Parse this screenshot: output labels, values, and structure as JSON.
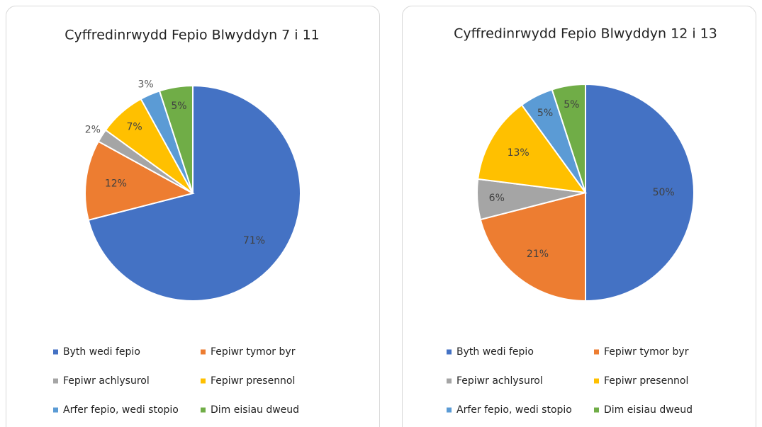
{
  "chart_data": [
    {
      "type": "pie",
      "title": "Cyffredinrwydd Fepio Blwyddyn 7 i 11",
      "categories": [
        "Byth wedi fepio",
        "Fepiwr tymor byr",
        "Fepiwr achlysurol",
        "Fepiwr presennol",
        "Arfer fepio, wedi stopio",
        "Dim eisiau dweud"
      ],
      "values": [
        71,
        12,
        2,
        7,
        3,
        5
      ],
      "value_labels": [
        "71%",
        "12%",
        "2%",
        "7%",
        "3%",
        "5%"
      ],
      "colors": [
        "#4472c4",
        "#ed7d31",
        "#a5a5a5",
        "#ffc000",
        "#5b9bd5",
        "#70ad47"
      ]
    },
    {
      "type": "pie",
      "title": "Cyffredinrwydd Fepio Blwyddyn 12 i 13",
      "categories": [
        "Byth wedi fepio",
        "Fepiwr tymor byr",
        "Fepiwr achlysurol",
        "Fepiwr presennol",
        "Arfer fepio, wedi stopio",
        "Dim eisiau dweud"
      ],
      "values": [
        50,
        21,
        6,
        13,
        5,
        5
      ],
      "value_labels": [
        "50%",
        "21%",
        "6%",
        "13%",
        "5%",
        "5%"
      ],
      "colors": [
        "#4472c4",
        "#ed7d31",
        "#a5a5a5",
        "#ffc000",
        "#5b9bd5",
        "#70ad47"
      ]
    }
  ]
}
